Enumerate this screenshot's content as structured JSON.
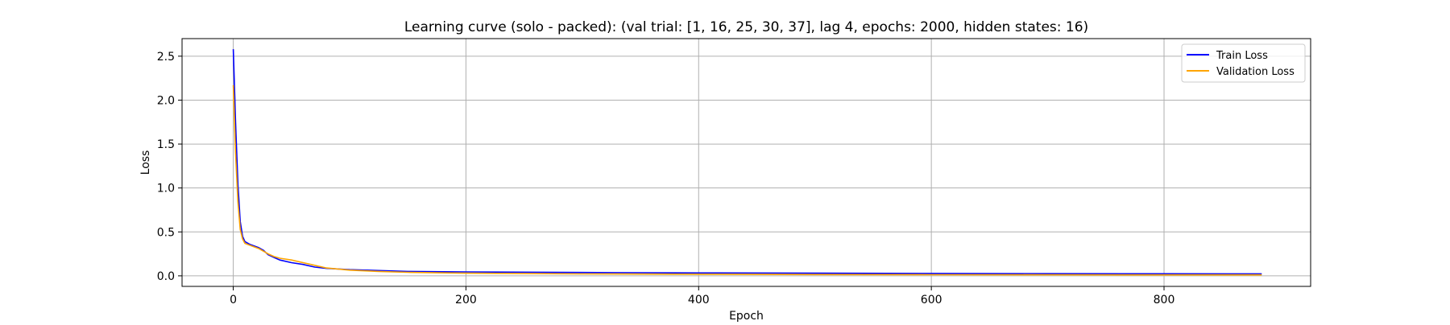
{
  "chart_data": {
    "type": "line",
    "title": "Learning curve (solo - packed): (val trial: [1, 16, 25, 30, 37], lag 4, epochs: 2000, hidden states: 16)",
    "xlabel": "Epoch",
    "ylabel": "Loss",
    "xlim": [
      -44,
      926
    ],
    "ylim": [
      -0.12,
      2.7
    ],
    "xticks": [
      0,
      200,
      400,
      600,
      800
    ],
    "yticks": [
      0.0,
      0.5,
      1.0,
      1.5,
      2.0,
      2.5
    ],
    "xtick_labels": [
      "0",
      "200",
      "400",
      "600",
      "800"
    ],
    "ytick_labels": [
      "0.0",
      "0.5",
      "1.0",
      "1.5",
      "2.0",
      "2.5"
    ],
    "grid": true,
    "legend_position": "upper right",
    "series": [
      {
        "name": "Train Loss",
        "color": "#0000ff",
        "x": [
          0,
          2,
          4,
          6,
          8,
          10,
          14,
          18,
          22,
          26,
          30,
          35,
          40,
          50,
          60,
          70,
          80,
          100,
          125,
          150,
          200,
          300,
          400,
          500,
          600,
          700,
          800,
          884
        ],
        "y": [
          2.58,
          1.75,
          1.05,
          0.62,
          0.45,
          0.39,
          0.36,
          0.34,
          0.32,
          0.29,
          0.24,
          0.21,
          0.18,
          0.15,
          0.13,
          0.1,
          0.085,
          0.07,
          0.06,
          0.05,
          0.045,
          0.038,
          0.033,
          0.03,
          0.027,
          0.025,
          0.024,
          0.023
        ]
      },
      {
        "name": "Validation Loss",
        "color": "#ffa500",
        "x": [
          0,
          2,
          4,
          6,
          8,
          10,
          14,
          18,
          22,
          26,
          30,
          35,
          40,
          50,
          60,
          70,
          80,
          100,
          125,
          150,
          200,
          300,
          400,
          500,
          600,
          700,
          800,
          884
        ],
        "y": [
          2.17,
          1.4,
          0.85,
          0.53,
          0.42,
          0.37,
          0.35,
          0.33,
          0.31,
          0.28,
          0.25,
          0.22,
          0.2,
          0.18,
          0.15,
          0.12,
          0.09,
          0.065,
          0.05,
          0.04,
          0.03,
          0.022,
          0.018,
          0.015,
          0.013,
          0.012,
          0.011,
          0.011
        ]
      }
    ]
  }
}
